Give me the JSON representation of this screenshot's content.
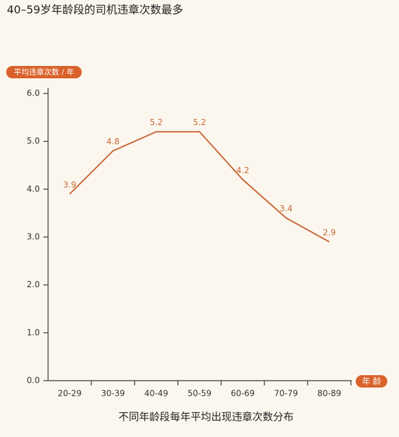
{
  "chart_data": {
    "type": "line",
    "title": "40–59岁年龄段的司机违章次数最多",
    "y_label": "平均违章次数 / 年",
    "x_label": "年 龄",
    "caption": "不同年龄段每年平均出现违章次数分布",
    "categories": [
      "20-29",
      "30-39",
      "40-49",
      "50-59",
      "60-69",
      "70-79",
      "80-89"
    ],
    "series": [
      {
        "name": "平均违章次数",
        "color": "#c8693a",
        "values": [
          3.9,
          4.8,
          5.2,
          5.2,
          4.2,
          3.4,
          2.9
        ]
      }
    ],
    "ylim": [
      0,
      6
    ],
    "yticks": [
      {
        "value": 0,
        "label": "0.0"
      },
      {
        "value": 1,
        "label": "1.0"
      },
      {
        "value": 2,
        "label": "2.0"
      },
      {
        "value": 3,
        "label": "3.0"
      },
      {
        "value": 4,
        "label": "4.0"
      },
      {
        "value": 5,
        "label": "5.0"
      },
      {
        "value": 6,
        "label": "6.0"
      }
    ],
    "grid": false
  }
}
